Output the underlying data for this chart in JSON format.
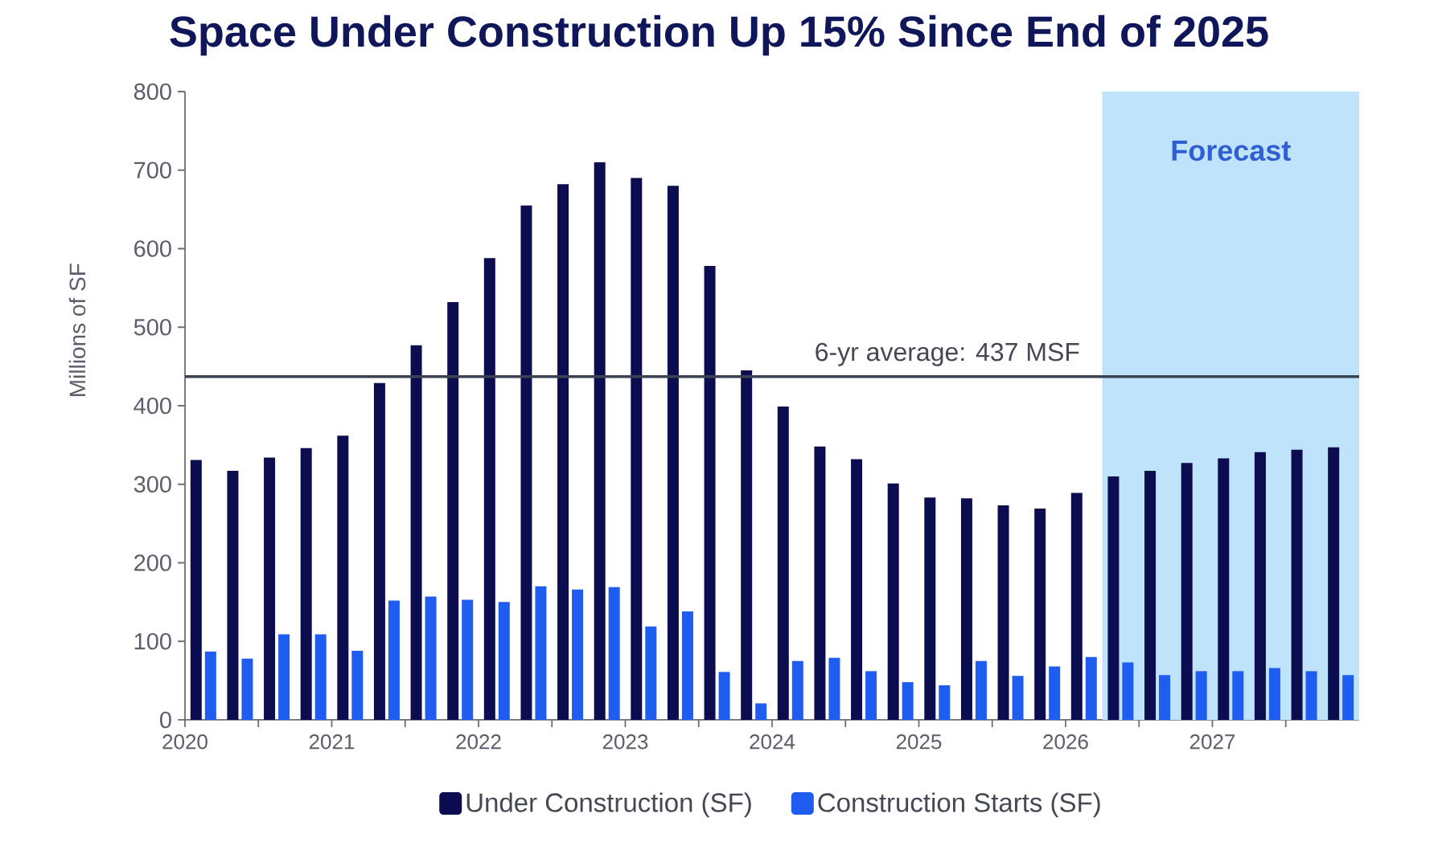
{
  "chart_data": {
    "type": "bar",
    "title": "Space Under Construction Up 15% Since End of 2025",
    "ylabel": "Millions of SF",
    "x": [
      2020.125,
      2020.375,
      2020.625,
      2020.875,
      2021.125,
      2021.375,
      2021.625,
      2021.875,
      2022.125,
      2022.375,
      2022.625,
      2022.875,
      2023.125,
      2023.375,
      2023.625,
      2023.875,
      2024.125,
      2024.375,
      2024.625,
      2024.875,
      2025.125,
      2025.375,
      2025.625,
      2025.875,
      2026.125,
      2026.375,
      2026.625,
      2026.875,
      2027.125,
      2027.375,
      2027.625,
      2027.875
    ],
    "series": [
      {
        "name": "Under Construction (SF)",
        "color": "#0b0d50",
        "values": [
          331,
          317,
          334,
          346,
          362,
          429,
          477,
          532,
          588,
          655,
          682,
          710,
          690,
          680,
          578,
          445,
          399,
          348,
          332,
          301,
          283,
          282,
          273,
          269,
          289,
          310,
          317,
          327,
          333,
          341,
          344,
          347
        ]
      },
      {
        "name": "Construction Starts (SF)",
        "color": "#1f5cf0",
        "values": [
          87,
          78,
          109,
          109,
          88,
          152,
          157,
          153,
          150,
          170,
          166,
          169,
          119,
          138,
          61,
          21,
          75,
          79,
          62,
          48,
          44,
          75,
          56,
          68,
          80,
          73,
          57,
          62,
          62,
          66,
          62,
          57
        ]
      }
    ],
    "xlim": [
      2020,
      2028
    ],
    "xticks": [
      2020,
      {
        "value": 2020.5,
        "label": null
      },
      2021,
      {
        "value": 2021.5,
        "label": null
      },
      2022,
      {
        "value": 2022.5,
        "label": null
      },
      2023,
      {
        "value": 2023.5,
        "label": null
      },
      2024,
      {
        "value": 2024.5,
        "label": null
      },
      2025,
      {
        "value": 2025.5,
        "label": null
      },
      2026,
      {
        "value": 2026.5,
        "label": null
      },
      2027,
      {
        "value": 2027.5,
        "label": null
      }
    ],
    "ylim": [
      0,
      800
    ],
    "yticks": [
      0,
      100,
      200,
      300,
      400,
      500,
      600,
      700,
      800
    ],
    "ref_lines": [
      {
        "axis": "y",
        "value": 437,
        "label": "6-yr average: 437 MSF",
        "color": "#3b4252"
      }
    ],
    "bands": [
      {
        "axis": "x",
        "from": 2026.25,
        "to": 2028,
        "label": "Forecast",
        "color": "#bfe3fb"
      }
    ],
    "legend": "bottom"
  }
}
